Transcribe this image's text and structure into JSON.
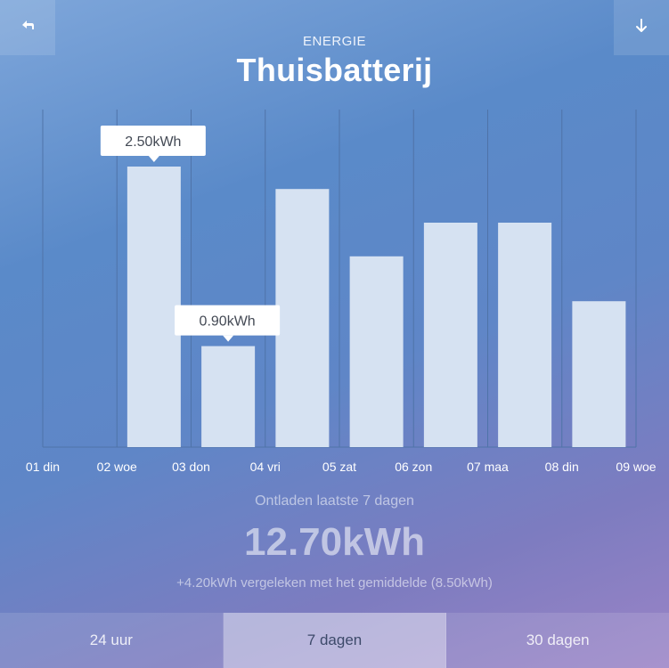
{
  "header": {
    "subtitle": "ENERGIE",
    "title": "Thuisbatterij",
    "back_icon": "back-arrow-icon",
    "download_icon": "down-arrow-icon"
  },
  "chart_data": {
    "type": "bar",
    "x_ticks": [
      "01 din",
      "02 woe",
      "03 don",
      "04 vri",
      "05 zat",
      "06 zon",
      "07 maa",
      "08 din",
      "09 woe"
    ],
    "categories": [
      "02 woe",
      "03 don",
      "04 vri",
      "05 zat",
      "06 zon",
      "07 maa",
      "08 din"
    ],
    "values": [
      2.5,
      0.9,
      2.3,
      1.7,
      2.0,
      2.0,
      1.3
    ],
    "unit": "kWh",
    "ylim": [
      0,
      3.0
    ],
    "grid": "vertical",
    "tooltips": [
      {
        "category": "02 woe",
        "label": "2.50kWh"
      },
      {
        "category": "03 don",
        "label": "0.90kWh"
      }
    ],
    "bar_color": "#d6e2f2",
    "grid_color": "#4f73a8"
  },
  "summary": {
    "label": "Ontladen laatste 7 dagen",
    "value": "12.70kWh",
    "comparison": "+4.20kWh vergeleken met het gemiddelde (8.50kWh)"
  },
  "tabs": [
    {
      "label": "24 uur",
      "active": false
    },
    {
      "label": "7 dagen",
      "active": true
    },
    {
      "label": "30 dagen",
      "active": false
    }
  ]
}
